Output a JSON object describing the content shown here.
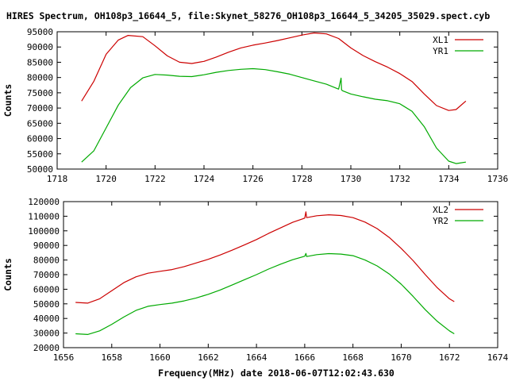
{
  "title": "HIRES Spectrum, OH108p3_16644_5, file:Skynet_58276_OH108p3_16644_5_34205_35029.spect.cyb",
  "xlabel": "Frequency(MHz) date 2018-06-07T12:02:43.630",
  "chart_data": [
    {
      "type": "line",
      "panel": "top",
      "ylabel": "Counts",
      "xlim": [
        1718,
        1736
      ],
      "ylim": [
        50000,
        95000
      ],
      "xticks": [
        "1718",
        "1720",
        "1722",
        "1724",
        "1726",
        "1728",
        "1730",
        "1732",
        "1734",
        "1736"
      ],
      "yticks": [
        "50000",
        "55000",
        "60000",
        "65000",
        "70000",
        "75000",
        "80000",
        "85000",
        "90000",
        "95000"
      ],
      "legend_position": "top-right",
      "grid": false,
      "series": [
        {
          "name": "XL1",
          "color": "#cc0000",
          "x": [
            1719.0,
            1719.5,
            1720.0,
            1720.5,
            1720.9,
            1721.5,
            1722.0,
            1722.5,
            1723.0,
            1723.5,
            1724.0,
            1724.5,
            1725.0,
            1725.5,
            1726.0,
            1726.5,
            1727.0,
            1727.5,
            1728.0,
            1728.5,
            1729.0,
            1729.5,
            1730.0,
            1730.5,
            1731.0,
            1731.5,
            1732.0,
            1732.5,
            1733.0,
            1733.5,
            1734.0,
            1734.3,
            1734.7
          ],
          "y": [
            72300,
            78800,
            87600,
            92300,
            93800,
            93400,
            90400,
            87100,
            85000,
            84600,
            85300,
            86700,
            88300,
            89700,
            90600,
            91300,
            92100,
            93000,
            93900,
            94600,
            94300,
            92800,
            89700,
            87200,
            85200,
            83400,
            81300,
            78700,
            74600,
            70800,
            69200,
            69500,
            72300
          ]
        },
        {
          "name": "YR1",
          "color": "#00aa00",
          "x": [
            1719.0,
            1719.5,
            1720.0,
            1720.5,
            1721.0,
            1721.5,
            1722.0,
            1722.5,
            1723.0,
            1723.5,
            1724.0,
            1724.5,
            1725.0,
            1725.5,
            1726.0,
            1726.5,
            1727.0,
            1727.5,
            1728.0,
            1728.5,
            1729.0,
            1729.5,
            1729.6,
            1729.62,
            1729.65,
            1730.0,
            1730.5,
            1731.0,
            1731.5,
            1732.0,
            1732.5,
            1733.0,
            1733.5,
            1734.0,
            1734.3,
            1734.7
          ],
          "y": [
            52300,
            56000,
            63500,
            71000,
            76700,
            79900,
            81000,
            80800,
            80400,
            80300,
            80900,
            81700,
            82300,
            82700,
            82900,
            82600,
            81900,
            81100,
            80000,
            78900,
            77800,
            76200,
            79800,
            76000,
            75700,
            74600,
            73700,
            72900,
            72400,
            71400,
            68900,
            63900,
            56900,
            52600,
            51800,
            52300
          ]
        }
      ]
    },
    {
      "type": "line",
      "panel": "bottom",
      "ylabel": "Counts",
      "xlim": [
        1656,
        1674
      ],
      "ylim": [
        20000,
        120000
      ],
      "xticks": [
        "1656",
        "1658",
        "1660",
        "1662",
        "1664",
        "1666",
        "1668",
        "1670",
        "1672",
        "1674"
      ],
      "yticks": [
        "20000",
        "30000",
        "40000",
        "50000",
        "60000",
        "70000",
        "80000",
        "90000",
        "100000",
        "110000",
        "120000"
      ],
      "legend_position": "top-right",
      "grid": false,
      "series": [
        {
          "name": "XL2",
          "color": "#cc0000",
          "x": [
            1656.5,
            1657.0,
            1657.5,
            1658.0,
            1658.5,
            1659.0,
            1659.5,
            1660.0,
            1660.5,
            1661.0,
            1661.5,
            1662.0,
            1662.5,
            1663.0,
            1663.5,
            1664.0,
            1664.5,
            1665.0,
            1665.5,
            1666.0,
            1666.05,
            1666.08,
            1666.5,
            1667.0,
            1667.5,
            1668.0,
            1668.5,
            1669.0,
            1669.5,
            1670.0,
            1670.5,
            1671.0,
            1671.5,
            1672.0,
            1672.2
          ],
          "y": [
            51000,
            50500,
            53500,
            59000,
            64500,
            68500,
            71000,
            72300,
            73500,
            75500,
            78000,
            80500,
            83500,
            86800,
            90300,
            94000,
            98200,
            102000,
            105800,
            108700,
            113000,
            109000,
            110300,
            111000,
            110500,
            109000,
            106000,
            101500,
            95500,
            88000,
            79500,
            70000,
            61000,
            53500,
            51500
          ]
        },
        {
          "name": "YR2",
          "color": "#00aa00",
          "x": [
            1656.5,
            1657.0,
            1657.5,
            1658.0,
            1658.5,
            1659.0,
            1659.5,
            1660.0,
            1660.5,
            1661.0,
            1661.5,
            1662.0,
            1662.5,
            1663.0,
            1663.5,
            1664.0,
            1664.5,
            1665.0,
            1665.5,
            1666.0,
            1666.05,
            1666.08,
            1666.5,
            1667.0,
            1667.5,
            1668.0,
            1668.5,
            1669.0,
            1669.5,
            1670.0,
            1670.5,
            1671.0,
            1671.5,
            1672.0,
            1672.2
          ],
          "y": [
            29500,
            29000,
            31500,
            36000,
            41000,
            45500,
            48300,
            49500,
            50500,
            52000,
            54000,
            56500,
            59500,
            63000,
            66500,
            70000,
            73800,
            77200,
            80200,
            82600,
            84500,
            82400,
            83700,
            84400,
            84100,
            83000,
            80000,
            76000,
            70500,
            63500,
            55000,
            46000,
            38000,
            31500,
            29500
          ]
        }
      ]
    }
  ]
}
